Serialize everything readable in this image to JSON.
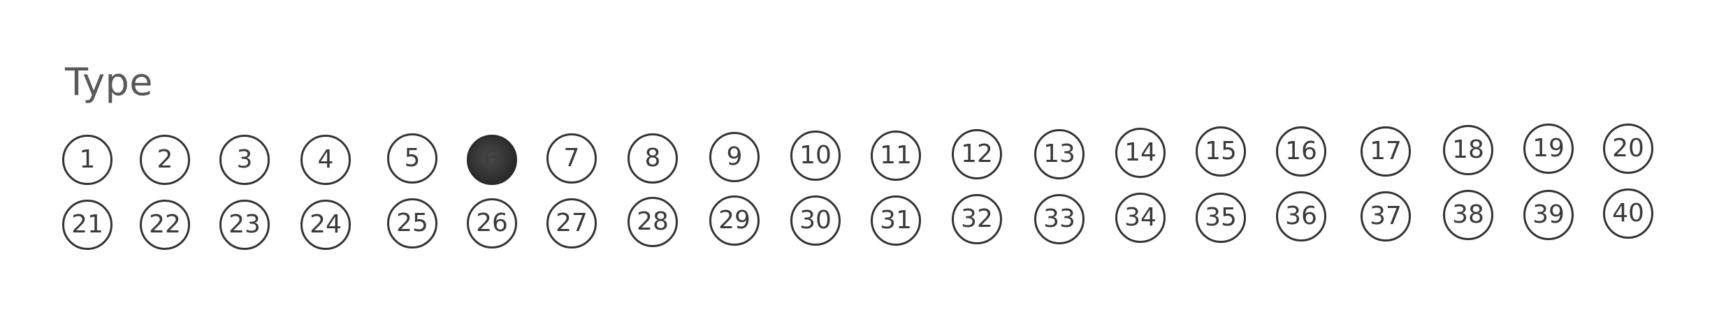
{
  "form": {
    "label": "Type",
    "selected": "6",
    "options": [
      "1",
      "2",
      "3",
      "4",
      "5",
      "6",
      "7",
      "8",
      "9",
      "10",
      "11",
      "12",
      "13",
      "14",
      "15",
      "16",
      "17",
      "18",
      "19",
      "20",
      "21",
      "22",
      "23",
      "24",
      "25",
      "26",
      "27",
      "28",
      "29",
      "30",
      "31",
      "32",
      "33",
      "34",
      "35",
      "36",
      "37",
      "38",
      "39",
      "40"
    ]
  }
}
